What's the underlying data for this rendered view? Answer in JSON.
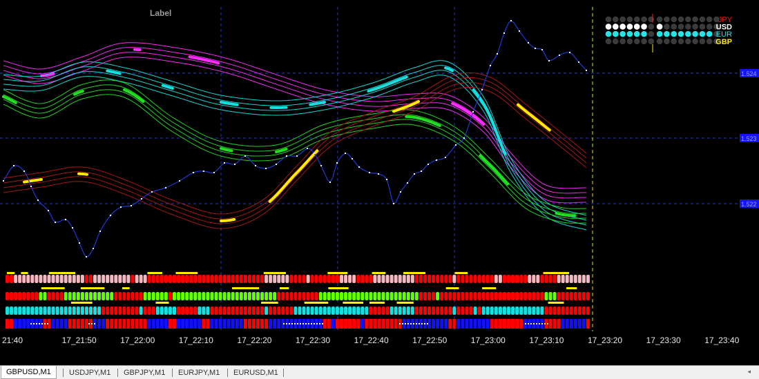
{
  "chart": {
    "label": "Label",
    "time_labels": [
      "21:40",
      "17_21:50",
      "17_22:00",
      "17_22:10",
      "17_22:20",
      "17_22:30",
      "17_22:40",
      "17_22:50",
      "17_23:00",
      "17_23:10",
      "17_23:20",
      "17_23:30",
      "17_23:40"
    ],
    "price_labels": [
      "1.524",
      "1.523",
      "1.522"
    ],
    "colors": {
      "background": "#000000",
      "grid": "#1e3ad6",
      "price_line": "#1e3ad6",
      "magenta": "#ff2bff",
      "cyan": "#14e0e0",
      "green": "#22dd22",
      "yellow": "#ffee00",
      "dark_red": "#b01818",
      "pink": "#f6b8c0",
      "red": "#ff0000",
      "blue": "#1010ff",
      "lime": "#66ff00"
    }
  },
  "currency_strength": {
    "currencies": [
      {
        "code": "JPY",
        "color": "#ff1a1a",
        "filled": 0,
        "filled_color": "#ff1a1a"
      },
      {
        "code": "USD",
        "color": "#ffffff",
        "filled": 6,
        "filled_color": "#ffffff"
      },
      {
        "code": "EUR",
        "color": "#22e6e6",
        "filled": 10,
        "filled_color": "#22e6e6"
      },
      {
        "code": "GBP",
        "color": "#ffee00",
        "filled": 0,
        "filled_color": "#ffee00"
      }
    ]
  },
  "tabs": [
    {
      "label": "GBPUSD,M1",
      "active": true
    },
    {
      "label": "USDJPY,M1",
      "active": false
    },
    {
      "label": "GBPJPY,M1",
      "active": false
    },
    {
      "label": "EURJPY,M1",
      "active": false
    },
    {
      "label": "EURUSD,M1",
      "active": false
    }
  ],
  "scroll_arrow": "◂"
}
